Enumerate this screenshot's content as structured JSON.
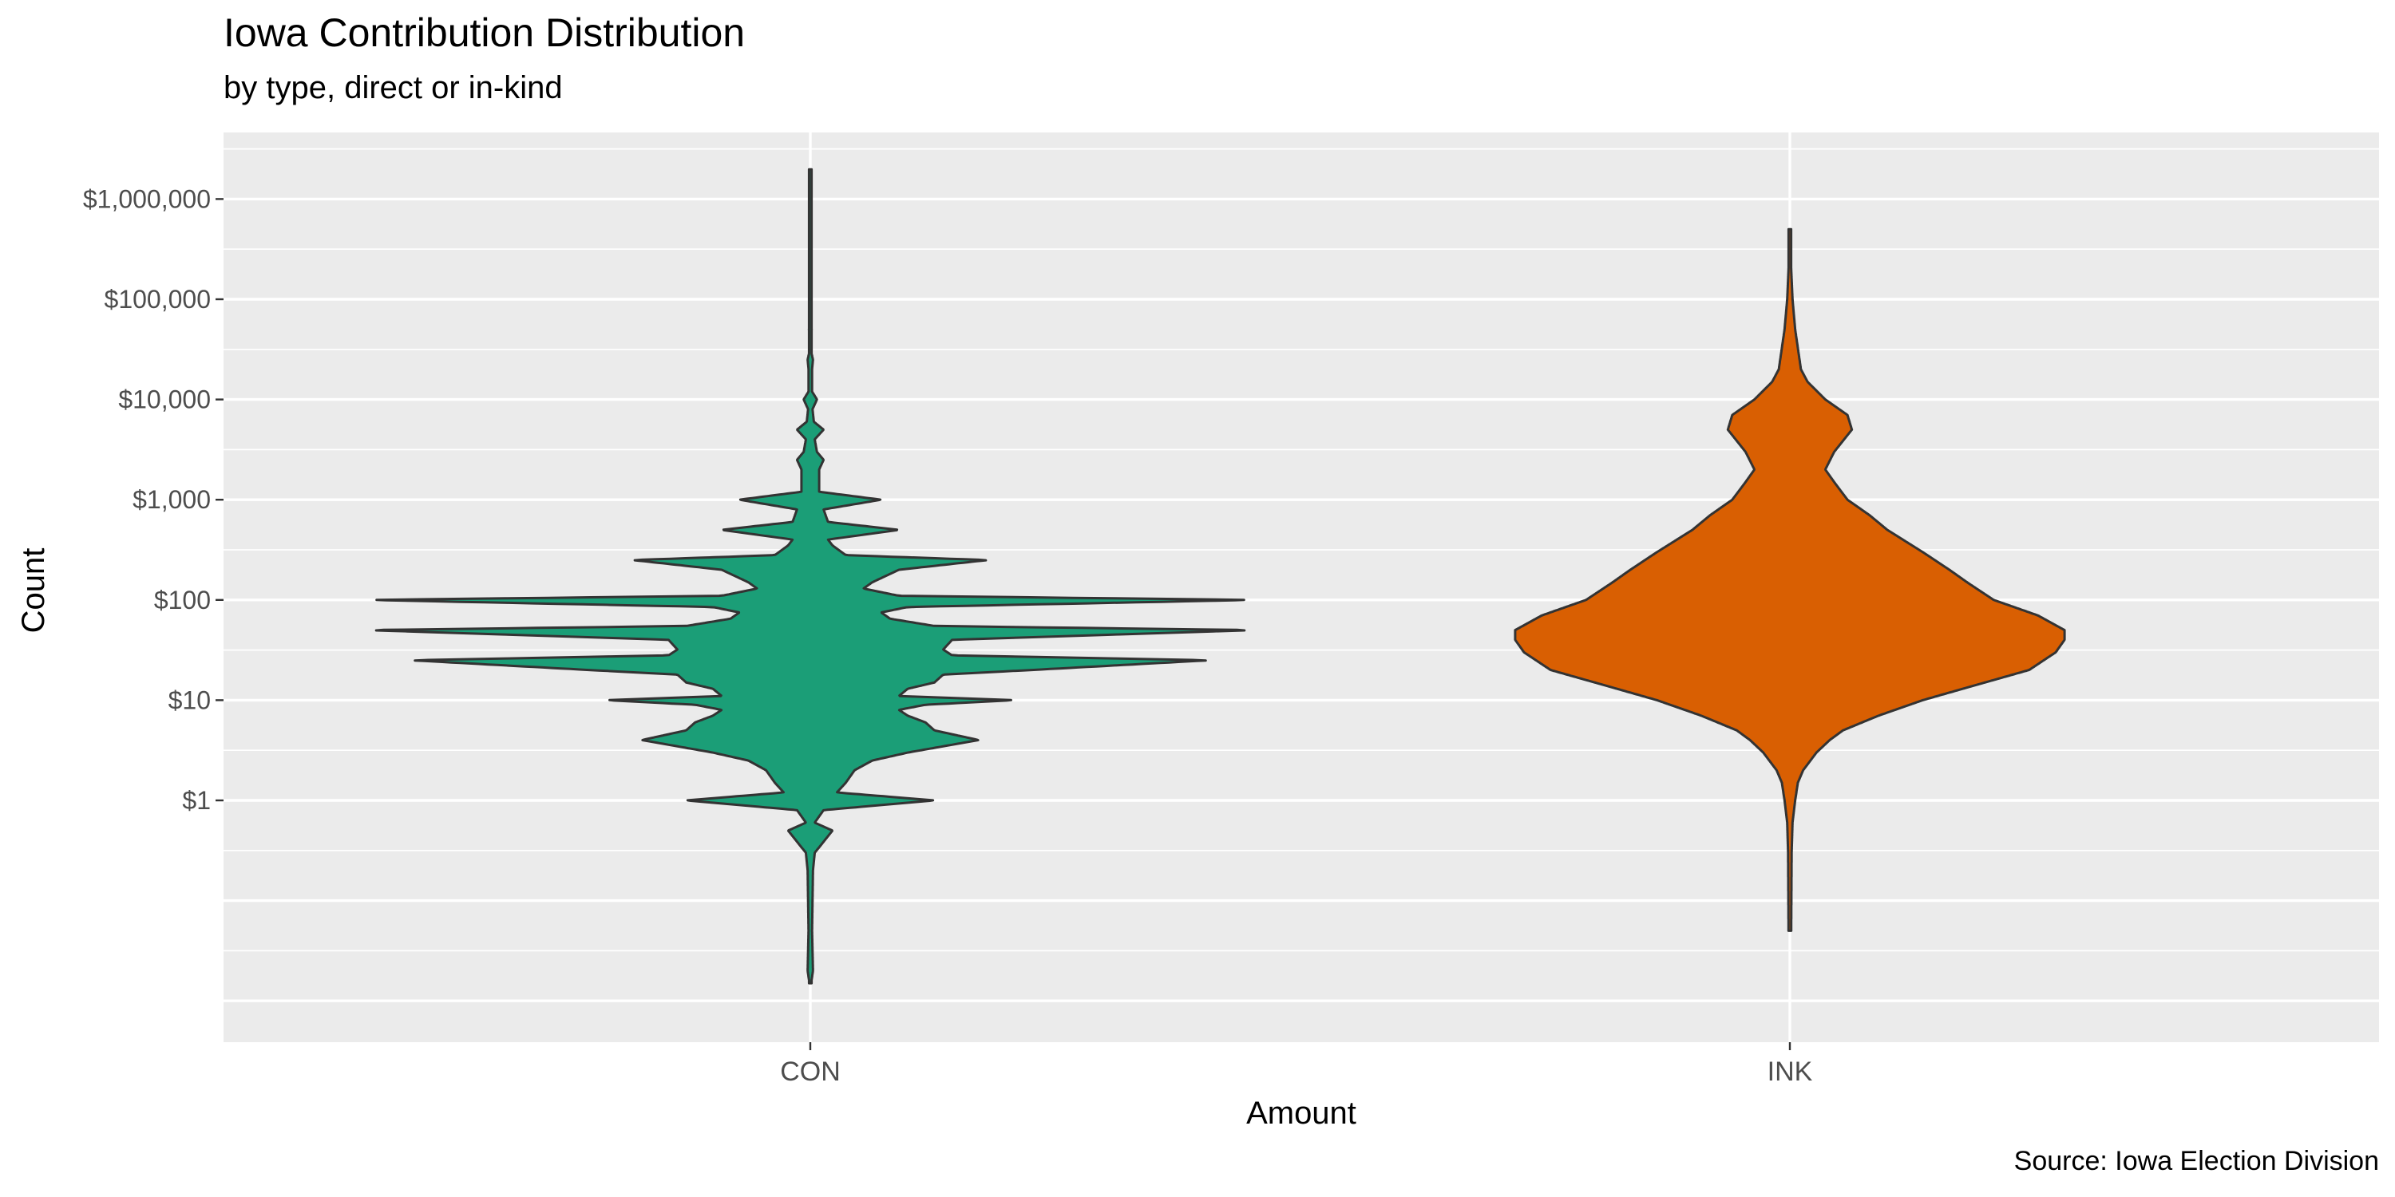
{
  "chart_data": {
    "type": "violin",
    "title": "Iowa Contribution Distribution",
    "subtitle": "by type, direct or in-kind",
    "caption": "Source: Iowa Election Division",
    "xlabel": "Amount",
    "ylabel": "Count",
    "y_scale": "log10",
    "ylim": [
      0.01,
      10000000
    ],
    "y_ticks": [
      1,
      10,
      100,
      1000,
      10000,
      100000,
      1000000
    ],
    "y_tick_labels": [
      "$1",
      "$10",
      "$100",
      "$1,000",
      "$10,000",
      "$100,000",
      "$1,000,000"
    ],
    "categories": [
      "CON",
      "INK"
    ],
    "grid": true,
    "legend": "none",
    "series": [
      {
        "category": "CON",
        "color": "#1b9e77",
        "range": [
          0.015,
          2000000
        ],
        "density": [
          [
            0.015,
            0.002
          ],
          [
            0.02,
            0.006
          ],
          [
            0.05,
            0.004
          ],
          [
            0.1,
            0.005
          ],
          [
            0.2,
            0.006
          ],
          [
            0.3,
            0.01
          ],
          [
            0.5,
            0.05
          ],
          [
            0.6,
            0.01
          ],
          [
            0.8,
            0.03
          ],
          [
            1,
            0.28
          ],
          [
            1.2,
            0.06
          ],
          [
            1.5,
            0.08
          ],
          [
            2,
            0.1
          ],
          [
            2.5,
            0.14
          ],
          [
            3,
            0.22
          ],
          [
            4,
            0.38
          ],
          [
            5,
            0.28
          ],
          [
            6,
            0.26
          ],
          [
            7,
            0.22
          ],
          [
            8,
            0.2
          ],
          [
            9,
            0.26
          ],
          [
            10,
            0.46
          ],
          [
            11,
            0.2
          ],
          [
            13,
            0.22
          ],
          [
            15,
            0.28
          ],
          [
            18,
            0.3
          ],
          [
            20,
            0.5
          ],
          [
            25,
            0.9
          ],
          [
            28,
            0.32
          ],
          [
            32,
            0.3
          ],
          [
            40,
            0.32
          ],
          [
            50,
            1.0
          ],
          [
            55,
            0.28
          ],
          [
            65,
            0.18
          ],
          [
            75,
            0.16
          ],
          [
            85,
            0.22
          ],
          [
            100,
            1.0
          ],
          [
            110,
            0.2
          ],
          [
            130,
            0.12
          ],
          [
            150,
            0.14
          ],
          [
            200,
            0.2
          ],
          [
            250,
            0.4
          ],
          [
            280,
            0.08
          ],
          [
            350,
            0.05
          ],
          [
            400,
            0.04
          ],
          [
            500,
            0.2
          ],
          [
            600,
            0.04
          ],
          [
            800,
            0.03
          ],
          [
            1000,
            0.16
          ],
          [
            1200,
            0.02
          ],
          [
            1500,
            0.02
          ],
          [
            2000,
            0.02
          ],
          [
            2500,
            0.03
          ],
          [
            3000,
            0.015
          ],
          [
            4000,
            0.01
          ],
          [
            5000,
            0.03
          ],
          [
            6000,
            0.008
          ],
          [
            8000,
            0.005
          ],
          [
            10000,
            0.015
          ],
          [
            12000,
            0.004
          ],
          [
            20000,
            0.004
          ],
          [
            25000,
            0.006
          ],
          [
            30000,
            0.002
          ],
          [
            50000,
            0.003
          ],
          [
            100000,
            0.001
          ],
          [
            500000,
            0.0005
          ],
          [
            2000000,
            0.0003
          ]
        ]
      },
      {
        "category": "INK",
        "color": "#d95f02",
        "range": [
          0.05,
          500000
        ],
        "density": [
          [
            0.05,
            0.003
          ],
          [
            0.3,
            0.004
          ],
          [
            0.6,
            0.006
          ],
          [
            1,
            0.012
          ],
          [
            1.5,
            0.018
          ],
          [
            2,
            0.03
          ],
          [
            3,
            0.06
          ],
          [
            4,
            0.09
          ],
          [
            5,
            0.12
          ],
          [
            7,
            0.2
          ],
          [
            10,
            0.3
          ],
          [
            15,
            0.44
          ],
          [
            20,
            0.54
          ],
          [
            30,
            0.6
          ],
          [
            40,
            0.62
          ],
          [
            50,
            0.62
          ],
          [
            70,
            0.56
          ],
          [
            100,
            0.46
          ],
          [
            150,
            0.4
          ],
          [
            200,
            0.36
          ],
          [
            300,
            0.3
          ],
          [
            500,
            0.22
          ],
          [
            700,
            0.18
          ],
          [
            1000,
            0.13
          ],
          [
            1500,
            0.1
          ],
          [
            2000,
            0.08
          ],
          [
            3000,
            0.1
          ],
          [
            5000,
            0.14
          ],
          [
            7000,
            0.13
          ],
          [
            10000,
            0.08
          ],
          [
            15000,
            0.04
          ],
          [
            20000,
            0.025
          ],
          [
            50000,
            0.012
          ],
          [
            100000,
            0.006
          ],
          [
            200000,
            0.003
          ],
          [
            500000,
            0.001
          ]
        ]
      }
    ]
  }
}
